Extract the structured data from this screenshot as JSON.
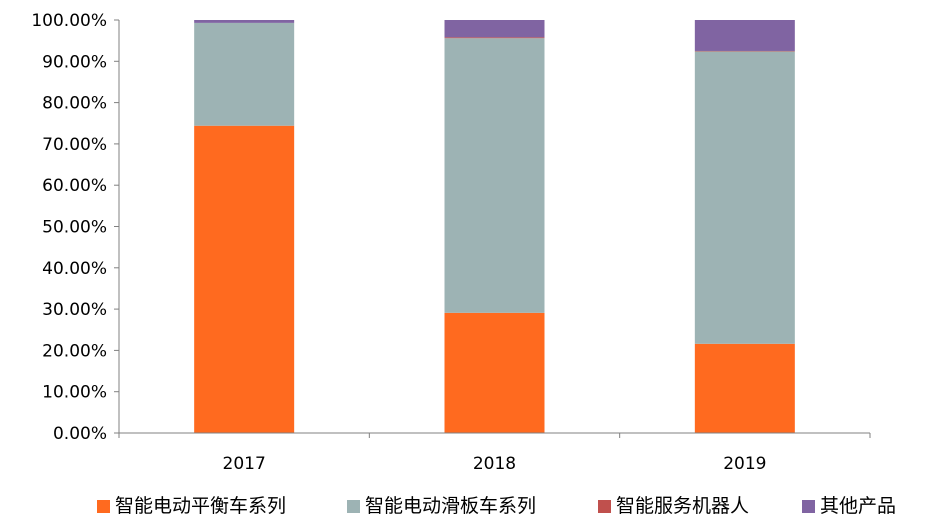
{
  "chart_data": {
    "type": "bar",
    "stacked": true,
    "categories": [
      "2017",
      "2018",
      "2019"
    ],
    "series": [
      {
        "name": "智能电动平衡车系列",
        "color": "#FF6A1F",
        "values": [
          74.4,
          29.1,
          21.6
        ]
      },
      {
        "name": "智能电动滑板车系列",
        "color": "#9DB3B4",
        "values": [
          24.9,
          66.5,
          70.8
        ]
      },
      {
        "name": "智能服务机器人",
        "color": "#C0504D",
        "values": [
          0.0,
          0.2,
          0.1
        ]
      },
      {
        "name": "其他产品",
        "color": "#8064A2",
        "values": [
          0.7,
          4.2,
          7.5
        ]
      }
    ],
    "y_tick_labels": [
      "0.00%",
      "10.00%",
      "20.00%",
      "30.00%",
      "40.00%",
      "50.00%",
      "60.00%",
      "70.00%",
      "80.00%",
      "90.00%",
      "100.00%"
    ],
    "ylim": [
      0,
      100
    ],
    "grid": false,
    "legend_position": "bottom"
  }
}
